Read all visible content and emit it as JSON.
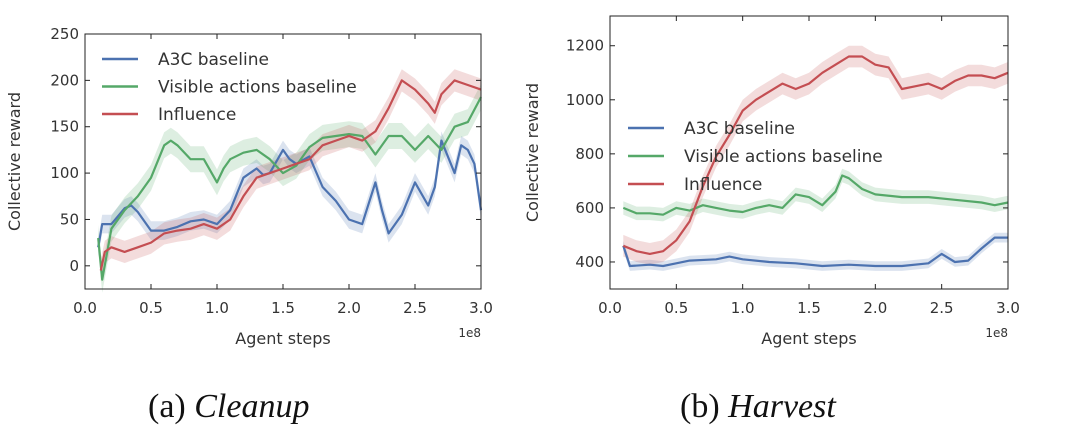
{
  "chart_data": [
    {
      "type": "line",
      "title": "Cleanup",
      "caption": {
        "label": "(a)",
        "name": "Cleanup"
      },
      "xlabel": "Agent steps",
      "ylabel": "Collective reward",
      "x_scale_label": "1e8",
      "xlim": [
        0.0,
        3.0
      ],
      "ylim": [
        -25,
        250
      ],
      "xticks": [
        0.0,
        0.5,
        1.0,
        1.5,
        2.0,
        2.5,
        3.0
      ],
      "xtick_labels": [
        "0.0",
        "0.5",
        "1.0",
        "1.5",
        "2.0",
        "2.5",
        "3.0"
      ],
      "yticks": [
        0,
        50,
        100,
        150,
        200,
        250
      ],
      "ytick_labels": [
        "0",
        "50",
        "100",
        "150",
        "200",
        "250"
      ],
      "legend_position": "top-left",
      "series": [
        {
          "name": "A3C baseline",
          "color": "#4c72b0",
          "band": 10,
          "x": [
            0.1,
            0.13,
            0.2,
            0.3,
            0.35,
            0.4,
            0.5,
            0.6,
            0.7,
            0.8,
            0.9,
            1.0,
            1.1,
            1.2,
            1.3,
            1.35,
            1.4,
            1.5,
            1.55,
            1.6,
            1.7,
            1.8,
            1.9,
            2.0,
            2.1,
            2.2,
            2.25,
            2.3,
            2.4,
            2.5,
            2.6,
            2.65,
            2.7,
            2.8,
            2.85,
            2.9,
            2.95,
            3.0
          ],
          "y": [
            20,
            45,
            45,
            62,
            65,
            58,
            38,
            38,
            42,
            48,
            50,
            45,
            60,
            95,
            105,
            98,
            100,
            125,
            115,
            110,
            118,
            85,
            70,
            50,
            45,
            90,
            60,
            35,
            55,
            90,
            65,
            85,
            135,
            100,
            130,
            125,
            110,
            60
          ]
        },
        {
          "name": "Visible actions baseline",
          "color": "#55a868",
          "band": 14,
          "x": [
            0.1,
            0.13,
            0.2,
            0.3,
            0.4,
            0.5,
            0.6,
            0.65,
            0.7,
            0.8,
            0.9,
            1.0,
            1.05,
            1.1,
            1.2,
            1.3,
            1.4,
            1.5,
            1.6,
            1.7,
            1.8,
            1.9,
            2.0,
            2.1,
            2.2,
            2.3,
            2.4,
            2.5,
            2.6,
            2.7,
            2.8,
            2.9,
            3.0
          ],
          "y": [
            30,
            -15,
            40,
            60,
            75,
            95,
            130,
            135,
            130,
            115,
            115,
            90,
            105,
            115,
            122,
            125,
            115,
            100,
            108,
            128,
            138,
            140,
            142,
            140,
            120,
            140,
            140,
            125,
            140,
            125,
            150,
            155,
            182
          ]
        },
        {
          "name": "Influence",
          "color": "#c44e52",
          "band": 12,
          "x": [
            0.12,
            0.15,
            0.2,
            0.3,
            0.4,
            0.5,
            0.6,
            0.7,
            0.8,
            0.9,
            1.0,
            1.1,
            1.2,
            1.3,
            1.4,
            1.5,
            1.6,
            1.7,
            1.8,
            1.9,
            2.0,
            2.1,
            2.2,
            2.3,
            2.4,
            2.5,
            2.6,
            2.65,
            2.7,
            2.8,
            2.9,
            3.0
          ],
          "y": [
            -5,
            15,
            20,
            15,
            20,
            25,
            35,
            38,
            40,
            45,
            40,
            50,
            75,
            95,
            100,
            105,
            110,
            115,
            130,
            135,
            140,
            135,
            145,
            170,
            200,
            190,
            175,
            165,
            185,
            200,
            195,
            190
          ]
        }
      ]
    },
    {
      "type": "line",
      "title": "Harvest",
      "caption": {
        "label": "(b)",
        "name": "Harvest"
      },
      "xlabel": "Agent steps",
      "ylabel": "Collective reward",
      "x_scale_label": "1e8",
      "xlim": [
        0.0,
        3.0
      ],
      "ylim": [
        300,
        1310
      ],
      "xticks": [
        0.0,
        0.5,
        1.0,
        1.5,
        2.0,
        2.5,
        3.0
      ],
      "xtick_labels": [
        "0.0",
        "0.5",
        "1.0",
        "1.5",
        "2.0",
        "2.5",
        "3.0"
      ],
      "yticks": [
        400,
        600,
        800,
        1000,
        1200
      ],
      "ytick_labels": [
        "400",
        "600",
        "800",
        "1000",
        "1200"
      ],
      "legend_position": "center-left",
      "series": [
        {
          "name": "A3C baseline",
          "color": "#4c72b0",
          "band": 18,
          "x": [
            0.1,
            0.15,
            0.3,
            0.4,
            0.5,
            0.6,
            0.8,
            0.9,
            1.0,
            1.2,
            1.4,
            1.6,
            1.8,
            2.0,
            2.2,
            2.4,
            2.5,
            2.6,
            2.7,
            2.8,
            2.9,
            3.0
          ],
          "y": [
            460,
            385,
            390,
            385,
            395,
            405,
            410,
            420,
            410,
            400,
            395,
            385,
            390,
            385,
            385,
            395,
            430,
            400,
            405,
            450,
            490,
            490
          ]
        },
        {
          "name": "Visible actions baseline",
          "color": "#55a868",
          "band": 25,
          "x": [
            0.1,
            0.2,
            0.3,
            0.4,
            0.5,
            0.6,
            0.7,
            0.8,
            0.9,
            1.0,
            1.1,
            1.2,
            1.3,
            1.4,
            1.5,
            1.6,
            1.7,
            1.75,
            1.8,
            1.9,
            2.0,
            2.2,
            2.4,
            2.6,
            2.8,
            2.9,
            3.0
          ],
          "y": [
            600,
            580,
            580,
            575,
            600,
            590,
            610,
            600,
            590,
            585,
            600,
            610,
            600,
            650,
            640,
            610,
            660,
            720,
            710,
            670,
            650,
            640,
            640,
            630,
            620,
            610,
            620
          ]
        },
        {
          "name": "Influence",
          "color": "#c44e52",
          "band": 40,
          "x": [
            0.1,
            0.2,
            0.3,
            0.4,
            0.5,
            0.6,
            0.7,
            0.8,
            0.9,
            1.0,
            1.1,
            1.2,
            1.3,
            1.4,
            1.5,
            1.6,
            1.7,
            1.8,
            1.9,
            2.0,
            2.1,
            2.2,
            2.3,
            2.4,
            2.5,
            2.6,
            2.7,
            2.8,
            2.9,
            3.0
          ],
          "y": [
            460,
            440,
            430,
            440,
            480,
            550,
            680,
            790,
            870,
            960,
            1000,
            1030,
            1060,
            1040,
            1060,
            1100,
            1130,
            1160,
            1160,
            1130,
            1120,
            1040,
            1050,
            1060,
            1040,
            1070,
            1090,
            1090,
            1080,
            1100
          ]
        }
      ]
    }
  ]
}
